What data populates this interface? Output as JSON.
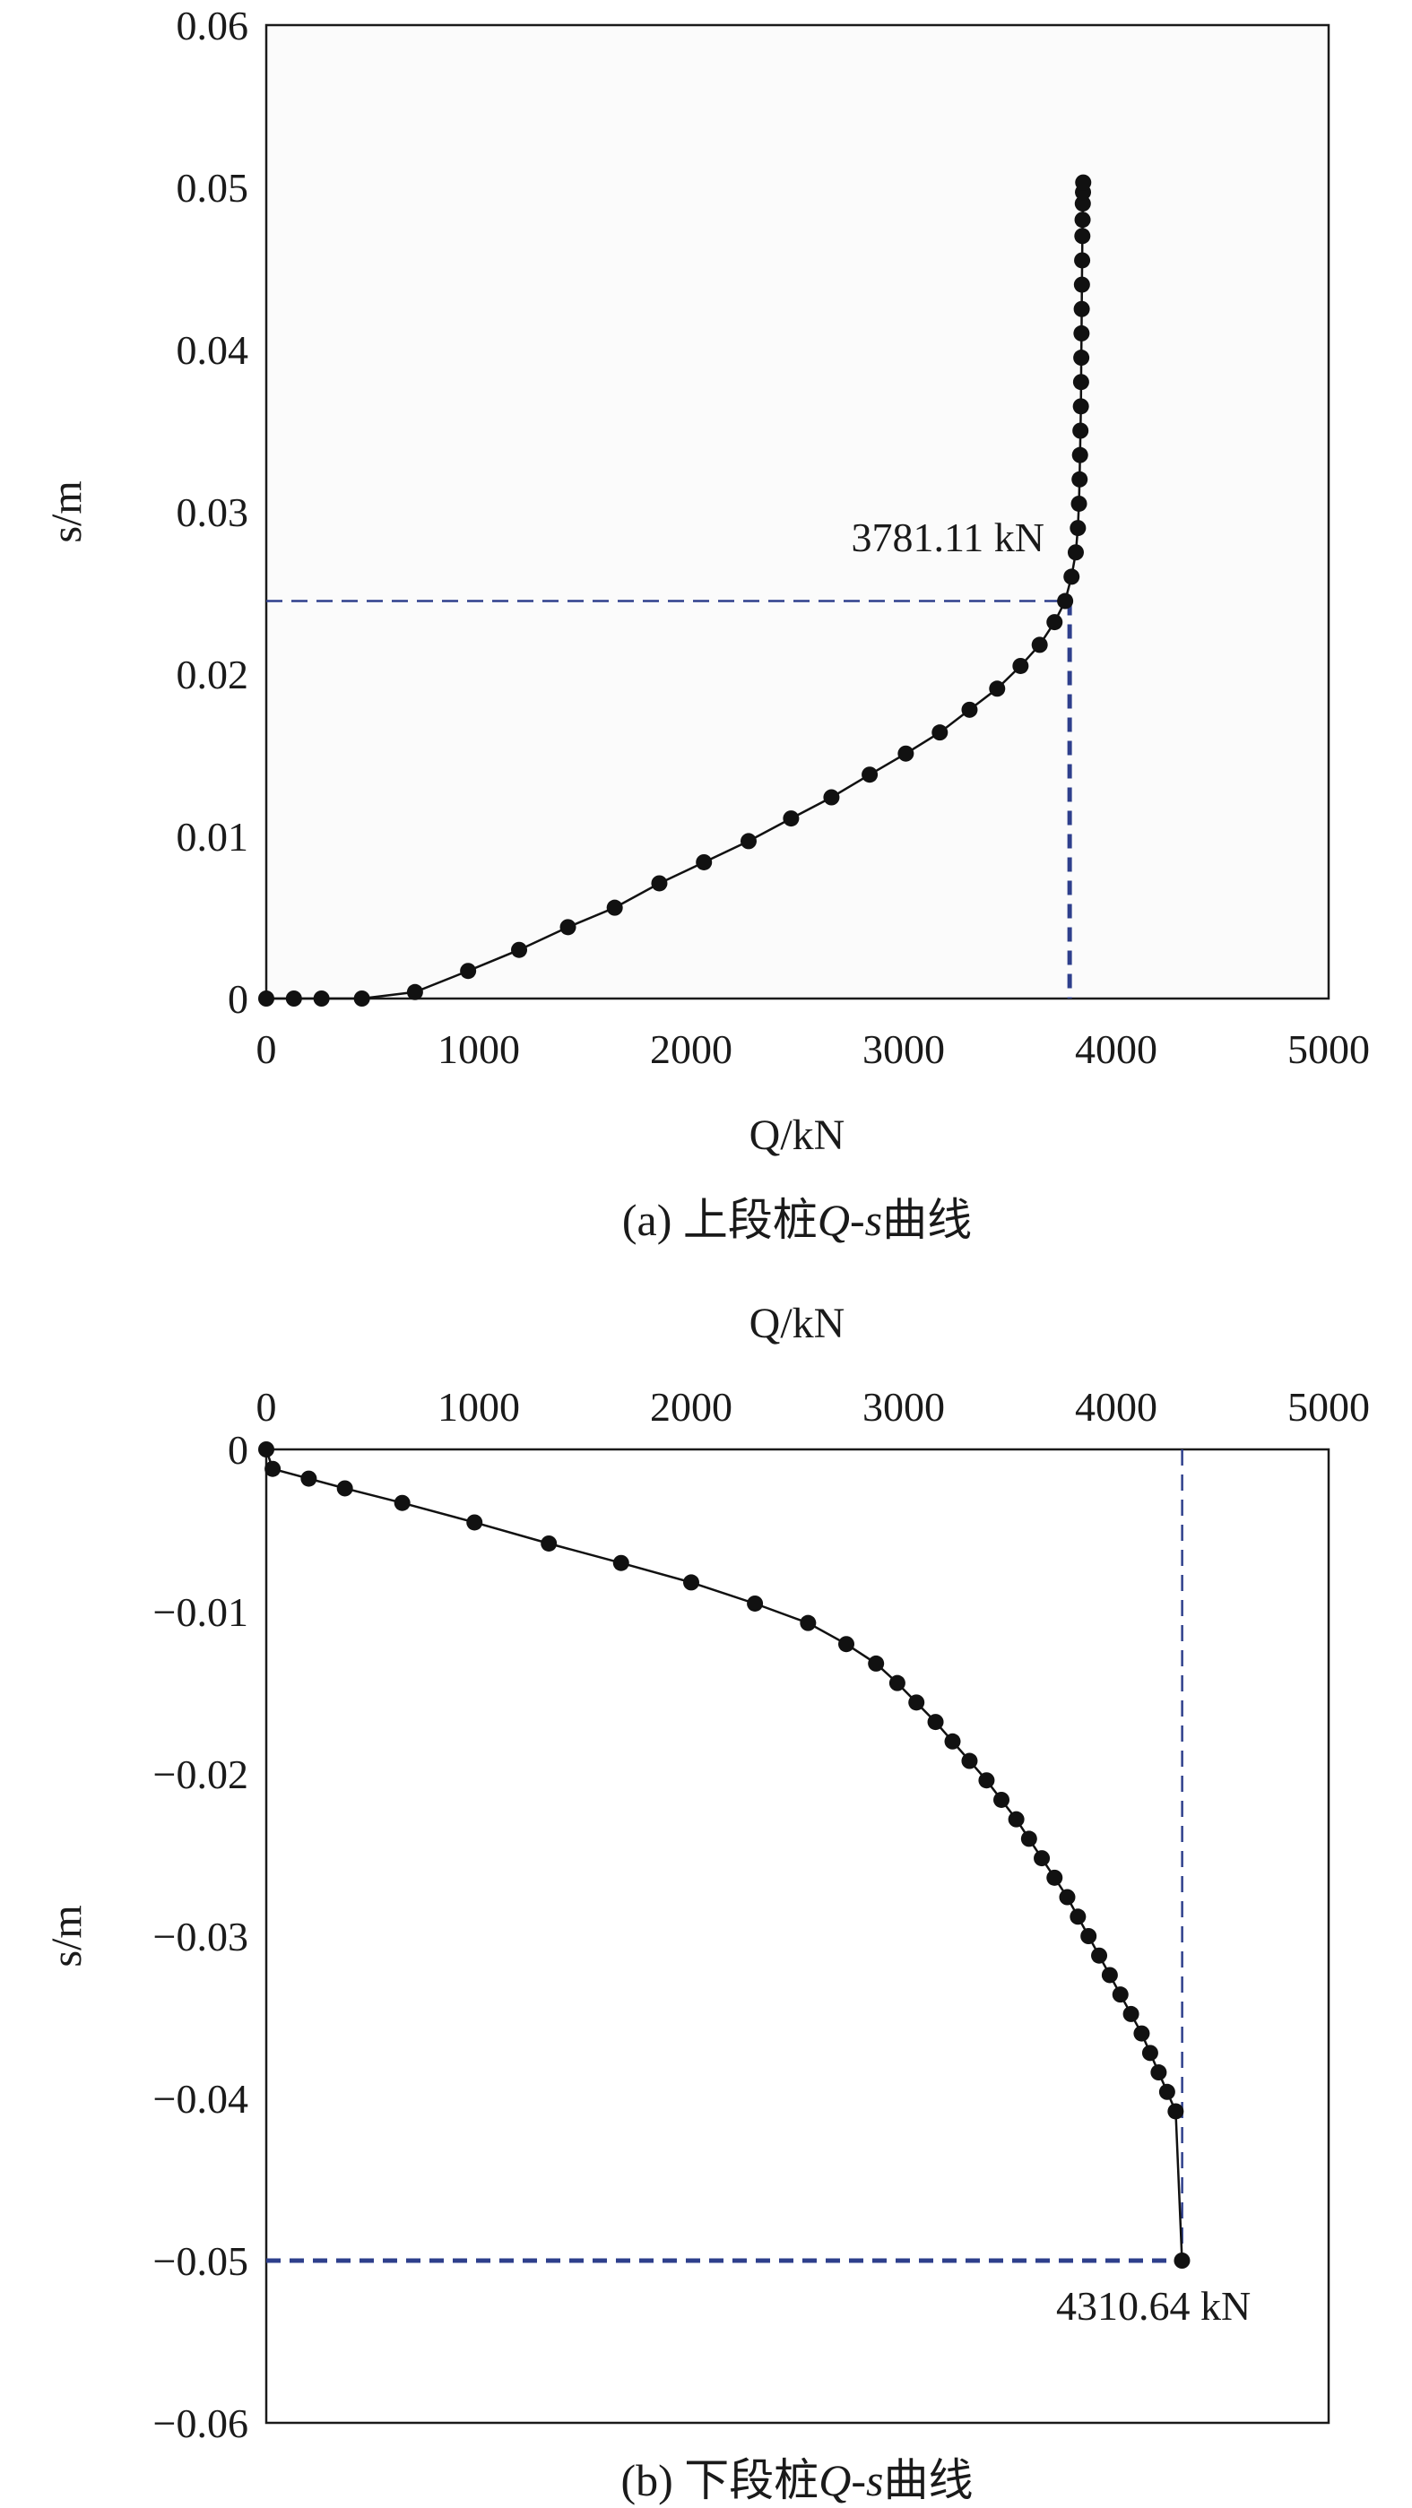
{
  "chart_data": [
    {
      "type": "scatter",
      "caption": "(a) 上段桩Q-s曲线",
      "caption_parts": {
        "prefix": "(a) 上段桩",
        "q": "Q",
        "dash": "-",
        "s": "s",
        "suffix": "曲线"
      },
      "xlabel": "Q/kN",
      "ylabel": "s/m",
      "x_ticks": [
        0,
        1000,
        2000,
        3000,
        4000,
        5000
      ],
      "y_ticks": [
        0,
        0.01,
        0.02,
        0.03,
        0.04,
        0.05,
        0.06
      ],
      "y_tick_labels": [
        "0",
        "0.01",
        "0.02",
        "0.03",
        "0.04",
        "0.05",
        "0.06"
      ],
      "xlim": [
        0,
        5000
      ],
      "ylim": [
        0,
        0.06
      ],
      "x_axis_position": "bottom",
      "grid": false,
      "colors": {
        "series": "#111111",
        "guide": "#2e3f8c",
        "plot_bg": "#fbfbfb"
      },
      "annotation": {
        "text": "3781.11 kN",
        "value": 3781.11,
        "s": 0.0245
      },
      "series": [
        {
          "x": [
            0,
            130,
            260,
            450,
            700,
            950,
            1190,
            1420,
            1640,
            1850,
            2060,
            2270,
            2470,
            2660,
            2840,
            3010,
            3170,
            3310,
            3440,
            3550,
            3640,
            3710,
            3760,
            3790,
            3810,
            3820,
            3825,
            3828,
            3830,
            3832,
            3834,
            3835,
            3836,
            3837,
            3838,
            3839,
            3840,
            3841,
            3842,
            3843,
            3844,
            3845
          ],
          "y": [
            0,
            0,
            0,
            0,
            0.0004,
            0.0017,
            0.003,
            0.0044,
            0.0056,
            0.0071,
            0.0084,
            0.0097,
            0.0111,
            0.0124,
            0.0138,
            0.0151,
            0.0164,
            0.0178,
            0.0191,
            0.0205,
            0.0218,
            0.0232,
            0.0245,
            0.026,
            0.0275,
            0.029,
            0.0305,
            0.032,
            0.0335,
            0.035,
            0.0365,
            0.038,
            0.0395,
            0.041,
            0.0425,
            0.044,
            0.0455,
            0.047,
            0.048,
            0.049,
            0.0497,
            0.0503
          ]
        }
      ]
    },
    {
      "type": "scatter",
      "caption": "(b) 下段桩Q-s曲线",
      "caption_parts": {
        "prefix": "(b) 下段桩",
        "q": "Q",
        "dash": "-",
        "s": "s",
        "suffix": "曲线"
      },
      "xlabel": "Q/kN",
      "ylabel": "s/m",
      "x_ticks": [
        0,
        1000,
        2000,
        3000,
        4000,
        5000
      ],
      "y_ticks": [
        0,
        -0.01,
        -0.02,
        -0.03,
        -0.04,
        -0.05,
        -0.06
      ],
      "y_tick_labels": [
        "0",
        "−0.01",
        "−0.02",
        "−0.03",
        "−0.04",
        "−0.05",
        "−0.06"
      ],
      "xlim": [
        0,
        5000
      ],
      "ylim": [
        -0.06,
        0
      ],
      "x_axis_position": "top",
      "grid": false,
      "colors": {
        "series": "#111111",
        "guide": "#2e3f8c",
        "plot_bg": "#ffffff"
      },
      "annotation": {
        "text": "4310.64 kN",
        "value": 4310.64,
        "s": -0.05
      },
      "series": [
        {
          "x": [
            0,
            30,
            200,
            370,
            640,
            980,
            1330,
            1670,
            2000,
            2300,
            2550,
            2730,
            2870,
            2970,
            3060,
            3150,
            3230,
            3310,
            3390,
            3460,
            3530,
            3590,
            3650,
            3710,
            3770,
            3820,
            3870,
            3920,
            3970,
            4020,
            4070,
            4120,
            4160,
            4200,
            4240,
            4280,
            4310
          ],
          "y": [
            0,
            -0.0012,
            -0.0018,
            -0.0024,
            -0.0033,
            -0.0045,
            -0.0058,
            -0.007,
            -0.0082,
            -0.0095,
            -0.0107,
            -0.012,
            -0.0132,
            -0.0144,
            -0.0156,
            -0.0168,
            -0.018,
            -0.0192,
            -0.0204,
            -0.0216,
            -0.0228,
            -0.024,
            -0.0252,
            -0.0264,
            -0.0276,
            -0.0288,
            -0.03,
            -0.0312,
            -0.0324,
            -0.0336,
            -0.0348,
            -0.036,
            -0.0372,
            -0.0384,
            -0.0396,
            -0.0408,
            -0.05
          ]
        }
      ]
    }
  ]
}
